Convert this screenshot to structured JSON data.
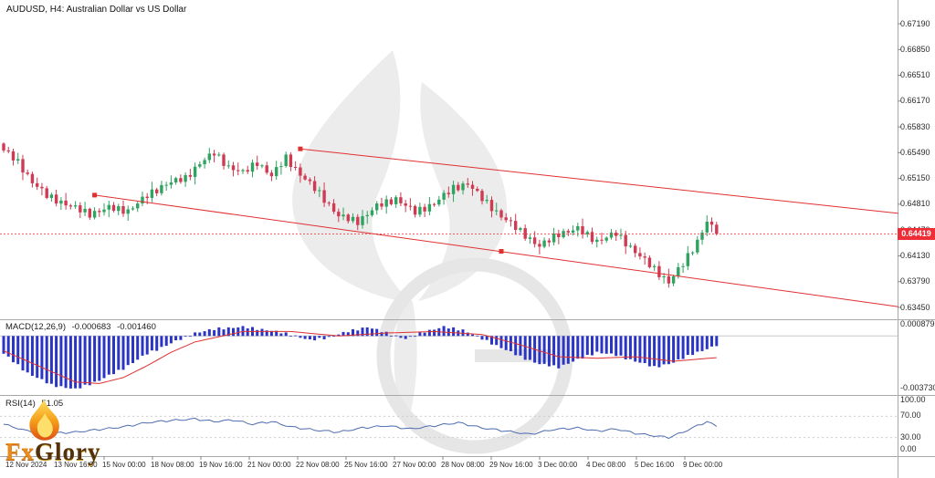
{
  "header": {
    "symbol_label": "AUDUSD, H4:",
    "symbol_description": "Australian Dollar vs US Dollar"
  },
  "current_price_label": "0.64419",
  "price_axis": {
    "labels": [
      "0.67190",
      "0.66850",
      "0.66510",
      "0.66170",
      "0.65830",
      "0.65490",
      "0.65150",
      "0.64810",
      "0.64470",
      "0.64130",
      "0.63790",
      "0.63450"
    ]
  },
  "time_axis": {
    "labels": [
      "12 Nov 2024",
      "13 Nov 16:00",
      "15 Nov 00:00",
      "18 Nov 08:00",
      "19 Nov 16:00",
      "21 Nov 00:00",
      "22 Nov 08:00",
      "25 Nov 16:00",
      "27 Nov 00:00",
      "28 Nov 08:00",
      "29 Nov 16:00",
      "3 Dec 00:00",
      "4 Dec 08:00",
      "5 Dec 16:00",
      "9 Dec 00:00"
    ]
  },
  "macd_panel": {
    "title": "MACD(12,26,9)",
    "value_main": "-0.000683",
    "value_signal": "-0.001460",
    "axis_labels": [
      "0.000879",
      "-0.003730"
    ]
  },
  "rsi_panel": {
    "title": "RSI(14)",
    "value": "51.05",
    "axis_labels": [
      "100.00",
      "70.00",
      "30.00",
      "0.00"
    ]
  },
  "logo": {
    "text_fx": "Fx",
    "text_rest": "Glory"
  },
  "colors": {
    "candle_up": "#2fa360",
    "candle_down": "#d03a52",
    "trendline": "#e03030",
    "macd_bar": "#2b35c5",
    "macd_signal": "#e03030",
    "rsi_line": "#4b6cb0",
    "badge_bg": "#ef2d37",
    "separator": "#a8a8a8",
    "watermark": "#ececec",
    "watermark_ring": "#e6e6e6"
  },
  "chart_data": {
    "type": "candlestick",
    "symbol": "AUDUSD",
    "timeframe": "H4",
    "title": "AUDUSD, H4: Australian Dollar vs US Dollar",
    "bars": 150,
    "current_price": 0.64419,
    "price_range": {
      "axis_top": 0.6719,
      "axis_bottom": 0.6345,
      "tick_step": 0.0034
    },
    "close_waypoints": [
      [
        0,
        0.6552
      ],
      [
        3,
        0.6536
      ],
      [
        6,
        0.651
      ],
      [
        9,
        0.6492
      ],
      [
        14,
        0.6478
      ],
      [
        18,
        0.6468
      ],
      [
        22,
        0.6476
      ],
      [
        26,
        0.6472
      ],
      [
        30,
        0.6492
      ],
      [
        34,
        0.6508
      ],
      [
        38,
        0.6515
      ],
      [
        41,
        0.6535
      ],
      [
        44,
        0.6548
      ],
      [
        47,
        0.653
      ],
      [
        50,
        0.6522
      ],
      [
        53,
        0.6536
      ],
      [
        56,
        0.6518
      ],
      [
        59,
        0.6542
      ],
      [
        62,
        0.652
      ],
      [
        66,
        0.6495
      ],
      [
        70,
        0.6465
      ],
      [
        74,
        0.6458
      ],
      [
        78,
        0.6478
      ],
      [
        82,
        0.6488
      ],
      [
        86,
        0.647
      ],
      [
        90,
        0.6482
      ],
      [
        94,
        0.6502
      ],
      [
        97,
        0.6508
      ],
      [
        100,
        0.6488
      ],
      [
        104,
        0.6465
      ],
      [
        108,
        0.6445
      ],
      [
        112,
        0.6425
      ],
      [
        116,
        0.6442
      ],
      [
        120,
        0.6448
      ],
      [
        124,
        0.6432
      ],
      [
        128,
        0.6442
      ],
      [
        132,
        0.6418
      ],
      [
        136,
        0.6395
      ],
      [
        139,
        0.6378
      ],
      [
        142,
        0.6402
      ],
      [
        145,
        0.6432
      ],
      [
        147,
        0.6458
      ],
      [
        149,
        0.6442
      ]
    ],
    "trendlines": [
      {
        "name": "channel-upper",
        "b1": 62,
        "p1": 0.6554,
        "b2": 187,
        "p2": 0.6469
      },
      {
        "name": "channel-lower",
        "b1": 19,
        "p1": 0.6493,
        "b2": 187,
        "p2": 0.6346
      }
    ],
    "anchor_points": [
      [
        19,
        0.6493
      ],
      [
        62,
        0.6554
      ],
      [
        104,
        0.6419
      ]
    ],
    "macd": {
      "range": [
        0.000879,
        -0.00373
      ],
      "current_macd": -0.000683,
      "current_signal": -0.00146,
      "histogram_waypoints": [
        [
          0,
          -0.0012
        ],
        [
          5,
          -0.0025
        ],
        [
          10,
          -0.0033
        ],
        [
          15,
          -0.0036
        ],
        [
          20,
          -0.003
        ],
        [
          25,
          -0.0022
        ],
        [
          30,
          -0.0012
        ],
        [
          35,
          -0.0005
        ],
        [
          40,
          0.0002
        ],
        [
          45,
          0.0005
        ],
        [
          50,
          0.0006
        ],
        [
          55,
          0.0004
        ],
        [
          60,
          0.0001
        ],
        [
          64,
          -0.0003
        ],
        [
          68,
          -0.0001
        ],
        [
          72,
          0.0003
        ],
        [
          76,
          0.0006
        ],
        [
          80,
          0.0002
        ],
        [
          84,
          -0.0002
        ],
        [
          88,
          0.0003
        ],
        [
          92,
          0.0006
        ],
        [
          96,
          0.0004
        ],
        [
          100,
          -0.0002
        ],
        [
          104,
          -0.0008
        ],
        [
          108,
          -0.0014
        ],
        [
          112,
          -0.0019
        ],
        [
          116,
          -0.0021
        ],
        [
          120,
          -0.0016
        ],
        [
          124,
          -0.0011
        ],
        [
          128,
          -0.0013
        ],
        [
          132,
          -0.0017
        ],
        [
          136,
          -0.0021
        ],
        [
          140,
          -0.0018
        ],
        [
          144,
          -0.0012
        ],
        [
          149,
          -0.000683
        ]
      ],
      "signal_waypoints": [
        [
          0,
          -0.001
        ],
        [
          10,
          -0.0024
        ],
        [
          15,
          -0.0031
        ],
        [
          20,
          -0.0032
        ],
        [
          25,
          -0.0028
        ],
        [
          30,
          -0.002
        ],
        [
          35,
          -0.0011
        ],
        [
          40,
          -0.0004
        ],
        [
          50,
          0.0003
        ],
        [
          60,
          0.0003
        ],
        [
          70,
          0.0
        ],
        [
          80,
          0.0002
        ],
        [
          90,
          0.0003
        ],
        [
          100,
          0.0001
        ],
        [
          108,
          -0.0006
        ],
        [
          116,
          -0.0014
        ],
        [
          124,
          -0.0015
        ],
        [
          132,
          -0.0014
        ],
        [
          140,
          -0.0017
        ],
        [
          149,
          -0.00146
        ]
      ]
    },
    "rsi": {
      "range": [
        0,
        100
      ],
      "levels": [
        70,
        30
      ],
      "current": 51.05,
      "waypoints": [
        [
          0,
          55
        ],
        [
          5,
          42
        ],
        [
          10,
          38
        ],
        [
          15,
          40
        ],
        [
          20,
          45
        ],
        [
          25,
          50
        ],
        [
          30,
          58
        ],
        [
          35,
          62
        ],
        [
          40,
          65
        ],
        [
          44,
          60
        ],
        [
          48,
          63
        ],
        [
          52,
          55
        ],
        [
          56,
          60
        ],
        [
          60,
          50
        ],
        [
          65,
          44
        ],
        [
          70,
          40
        ],
        [
          75,
          48
        ],
        [
          80,
          52
        ],
        [
          85,
          46
        ],
        [
          90,
          52
        ],
        [
          95,
          58
        ],
        [
          100,
          48
        ],
        [
          105,
          42
        ],
        [
          110,
          36
        ],
        [
          115,
          45
        ],
        [
          120,
          48
        ],
        [
          124,
          42
        ],
        [
          128,
          46
        ],
        [
          132,
          38
        ],
        [
          136,
          33
        ],
        [
          139,
          30
        ],
        [
          142,
          40
        ],
        [
          145,
          52
        ],
        [
          147,
          60
        ],
        [
          149,
          51.05
        ]
      ]
    }
  }
}
